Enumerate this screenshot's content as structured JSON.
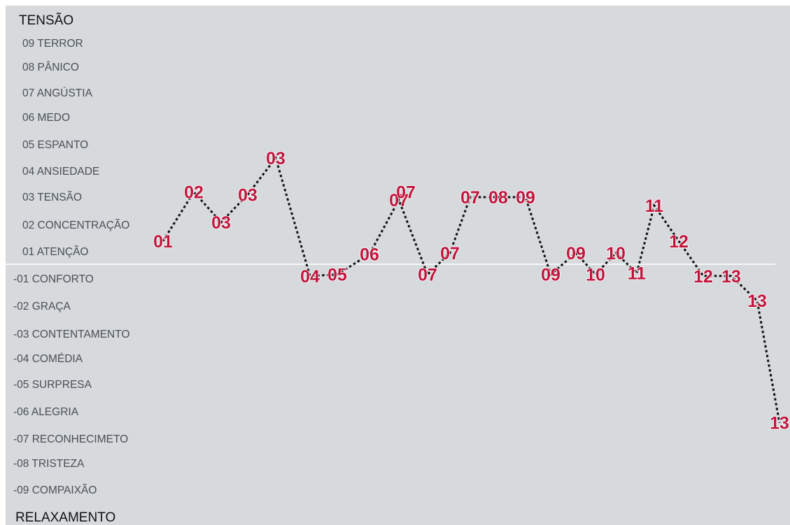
{
  "chart_data": {
    "type": "line",
    "title": "",
    "y_top_label": "TENSÃO",
    "y_bottom_label": "RELAXAMENTO",
    "ylim": [
      -9,
      9
    ],
    "y_levels": [
      {
        "value": 9,
        "label": "09 TERROR"
      },
      {
        "value": 8,
        "label": "08 PÂNICO"
      },
      {
        "value": 7,
        "label": "07 ANGÚSTIA"
      },
      {
        "value": 6,
        "label": "06 MEDO"
      },
      {
        "value": 5,
        "label": "05 ESPANTO"
      },
      {
        "value": 4,
        "label": "04 ANSIEDADE"
      },
      {
        "value": 3,
        "label": "03 TENSÃO"
      },
      {
        "value": 2,
        "label": "02 CONCENTRAÇÃO"
      },
      {
        "value": 1,
        "label": "01 ATENÇÃO"
      },
      {
        "value": -1,
        "label": "-01 CONFORTO"
      },
      {
        "value": -2,
        "label": "-02 GRAÇA"
      },
      {
        "value": -3,
        "label": "-03 CONTENTAMENTO"
      },
      {
        "value": -4,
        "label": "-04 COMÉDIA"
      },
      {
        "value": -5,
        "label": "-05 SURPRESA"
      },
      {
        "value": -6,
        "label": "-06 ALEGRIA"
      },
      {
        "value": -7,
        "label": "-07 RECONHECIMETO"
      },
      {
        "value": -8,
        "label": "-08 TRISTEZA"
      },
      {
        "value": -9,
        "label": "-09 COMPAIXÃO"
      }
    ],
    "series": [
      {
        "values": [
          1.4,
          3.2,
          2.1,
          3.1,
          4.5,
          -0.8,
          -0.7,
          0.8,
          2.9,
          3.2,
          0.9,
          -0.7,
          3.0,
          3.0,
          3.0,
          -0.7,
          0.9,
          -0.7,
          0.9,
          -0.6,
          2.7,
          1.4,
          -0.8,
          -0.8,
          -1.8,
          -6.4
        ],
        "labels": [
          "01",
          "02",
          "03",
          "03",
          "03",
          "04",
          "05",
          "06",
          "07",
          "07",
          "07",
          "07",
          "07",
          "08",
          "09",
          "09",
          "09",
          "10",
          "10",
          "11",
          "11",
          "12",
          "12",
          "13",
          "13",
          "13"
        ]
      }
    ],
    "grid": false,
    "legend": "none"
  },
  "colors": {
    "background": "#d6dadd",
    "zero_line": "#ffffff",
    "line": "#111111",
    "label_fill": "#c0143c",
    "label_outline": "#ffffff"
  }
}
